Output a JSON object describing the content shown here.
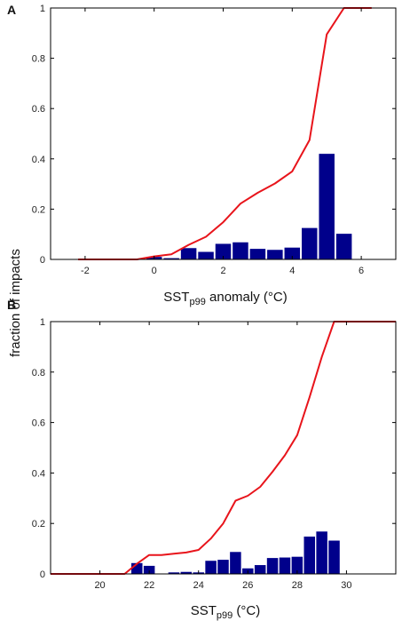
{
  "figure": {
    "ylabel": "fraction of impacts"
  },
  "chart_data": [
    {
      "panel": "A",
      "type": "bar",
      "xlabel_main": "SST",
      "xlabel_sub": "p99",
      "xlabel_rest": " anomaly (°C)",
      "xlim": [
        -3,
        7
      ],
      "ylim": [
        0,
        1
      ],
      "xticks": [
        -2,
        0,
        2,
        4,
        6
      ],
      "yticks": [
        0,
        0.2,
        0.4,
        0.6,
        0.8,
        1
      ],
      "ytick_labels": [
        "0",
        "0.2",
        "0.4",
        "0.6",
        "0.8",
        "1"
      ],
      "bar_width": 0.45,
      "bars": {
        "color": "#00008b",
        "x": [
          0,
          0.5,
          1,
          1.5,
          2,
          2.5,
          3,
          3.5,
          4,
          4.5,
          5,
          5.5
        ],
        "values": [
          0.01,
          0.005,
          0.045,
          0.03,
          0.062,
          0.068,
          0.042,
          0.038,
          0.047,
          0.125,
          0.42,
          0.102
        ]
      },
      "cumulative": {
        "color": "#e8141b",
        "x": [
          -2.2,
          -1.5,
          -1,
          -0.5,
          0,
          0.5,
          1,
          1.5,
          2,
          2.5,
          3,
          3.5,
          4,
          4.5,
          5,
          5.5,
          6.3
        ],
        "values": [
          0,
          0,
          0,
          0,
          0.012,
          0.02,
          0.058,
          0.09,
          0.148,
          0.222,
          0.265,
          0.302,
          0.35,
          0.475,
          0.895,
          1.0,
          1.0
        ]
      }
    },
    {
      "panel": "B",
      "type": "bar",
      "xlabel_main": "SST",
      "xlabel_sub": "p99",
      "xlabel_rest": " (°C)",
      "xlim": [
        18,
        32
      ],
      "ylim": [
        0,
        1
      ],
      "xticks": [
        20,
        22,
        24,
        26,
        28,
        30
      ],
      "yticks": [
        0,
        0.2,
        0.4,
        0.6,
        0.8,
        1
      ],
      "ytick_labels": [
        "0",
        "0.2",
        "0.4",
        "0.6",
        "0.8",
        "1"
      ],
      "bar_width": 0.45,
      "bars": {
        "color": "#00008b",
        "x": [
          21.5,
          22,
          23,
          23.5,
          24,
          24.5,
          25,
          25.5,
          26,
          26.5,
          27,
          27.5,
          28,
          28.5,
          29,
          29.5
        ],
        "values": [
          0.043,
          0.032,
          0.006,
          0.008,
          0.006,
          0.052,
          0.056,
          0.087,
          0.022,
          0.035,
          0.063,
          0.065,
          0.068,
          0.148,
          0.168,
          0.132
        ]
      },
      "cumulative": {
        "color": "#e8141b",
        "x": [
          18,
          20,
          21,
          21.5,
          22,
          22.5,
          23,
          23.5,
          24,
          24.5,
          25,
          25.5,
          26,
          26.5,
          27,
          27.5,
          28,
          28.5,
          29,
          29.5,
          30,
          32
        ],
        "values": [
          0,
          0,
          0,
          0.04,
          0.075,
          0.075,
          0.08,
          0.085,
          0.095,
          0.14,
          0.2,
          0.29,
          0.31,
          0.345,
          0.405,
          0.47,
          0.55,
          0.7,
          0.86,
          1.0,
          1.0,
          1.0
        ]
      }
    }
  ]
}
